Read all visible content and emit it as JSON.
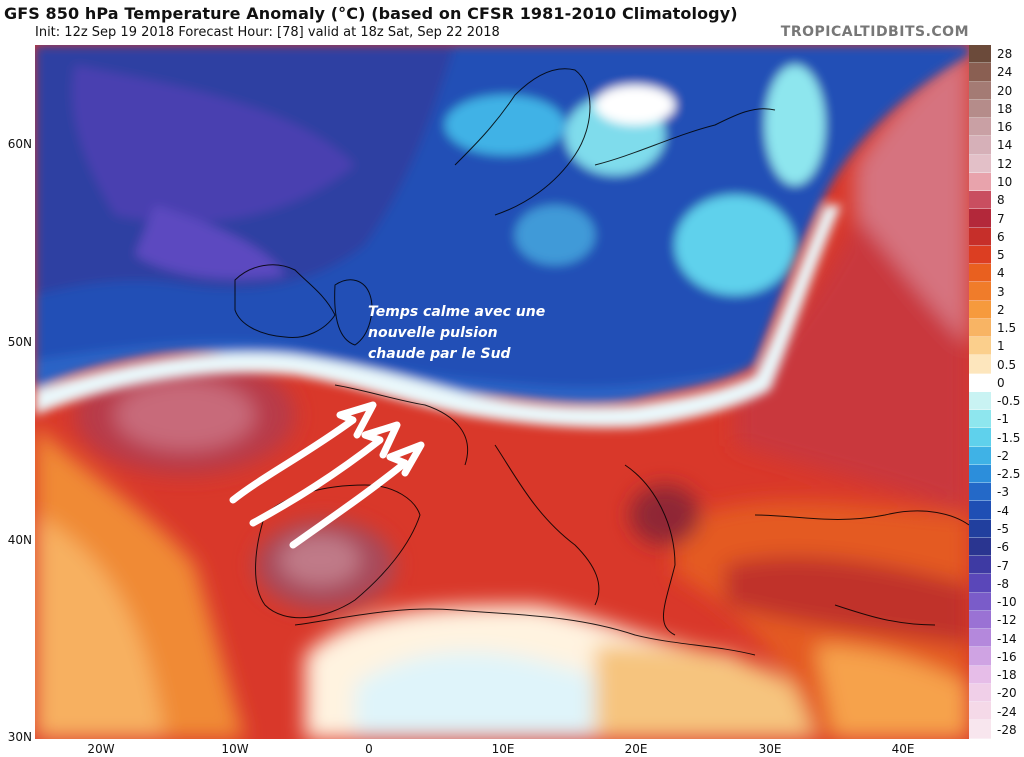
{
  "title": "GFS 850 hPa Temperature Anomaly (°C) (based on CFSR 1981-2010 Climatology)",
  "subtitle": "Init: 12z Sep 19 2018   Forecast Hour: [78]   valid at 18z Sat, Sep 22 2018",
  "brand": "TROPICALTIDBITS.COM",
  "annotation": {
    "line1": "Temps calme avec une",
    "line2": "nouvelle pulsion",
    "line3": "chaude par le Sud"
  },
  "lat_labels": [
    "60N",
    "50N",
    "40N",
    "30N"
  ],
  "lon_labels": [
    "20W",
    "10W",
    "0",
    "10E",
    "20E",
    "30E",
    "40E"
  ],
  "colorbar": {
    "labels": [
      "28",
      "24",
      "20",
      "18",
      "16",
      "14",
      "12",
      "10",
      "8",
      "7",
      "6",
      "5",
      "4",
      "3",
      "2",
      "1.5",
      "1",
      "0.5",
      "0",
      "-0.5",
      "-1",
      "-1.5",
      "-2",
      "-2.5",
      "-3",
      "-4",
      "-5",
      "-6",
      "-7",
      "-8",
      "-10",
      "-12",
      "-14",
      "-16",
      "-18",
      "-20",
      "-24",
      "-28"
    ],
    "colors": [
      "#6b4a3a",
      "#8a5f52",
      "#a47b74",
      "#b58c8a",
      "#c9a0a4",
      "#d6b0b8",
      "#e3c0c8",
      "#e8a3ac",
      "#c94e60",
      "#b3283a",
      "#c62f2a",
      "#dc3e22",
      "#e9601f",
      "#f07c2a",
      "#f69a3d",
      "#f8b464",
      "#fbcf8c",
      "#fde6bd",
      "#ffffff",
      "#c9f3f3",
      "#8ee6ee",
      "#5fd1ec",
      "#3fb2e6",
      "#2c8edb",
      "#2469c8",
      "#1f4fb4",
      "#213f9e",
      "#2a3590",
      "#3e3aa3",
      "#5a47b9",
      "#7a5cc9",
      "#9a72d4",
      "#b488dc",
      "#cfa3e3",
      "#e6bde8",
      "#f0cfe8",
      "#f5d9e8",
      "#f8e6ee"
    ]
  }
}
